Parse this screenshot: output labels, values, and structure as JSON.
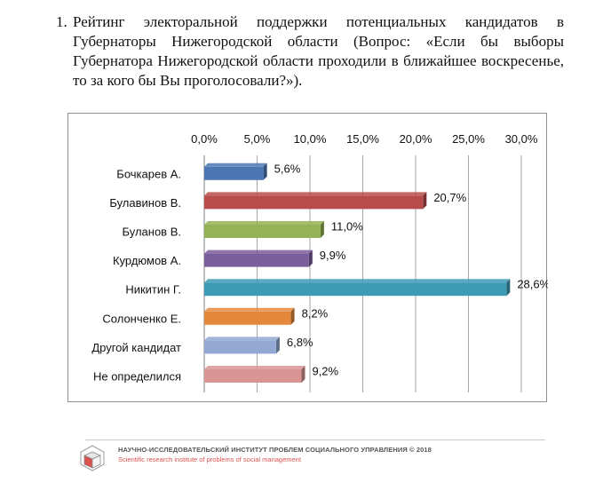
{
  "heading": {
    "number": "1.",
    "text": "Рейтинг электоральной поддержки потенциальных кандидатов в Губернаторы Нижегородской области (Вопрос: «Если бы выборы Губернатора Нижегородской области проходили в ближайшее воскресенье, то за кого бы Вы проголосовали?»)."
  },
  "chart_data": {
    "type": "bar",
    "orientation": "horizontal",
    "categories": [
      "Бочкарев А.",
      "Булавинов В.",
      "Буланов В.",
      "Курдюмов А.",
      "Никитин Г.",
      "Солонченко Е.",
      "Другой кандидат",
      "Не определился"
    ],
    "values": [
      5.6,
      20.7,
      11.0,
      9.9,
      28.6,
      8.2,
      6.8,
      9.2
    ],
    "value_labels": [
      "5,6%",
      "20,7%",
      "11,0%",
      "9,9%",
      "28,6%",
      "8,2%",
      "6,8%",
      "9,2%"
    ],
    "colors": [
      "#4a77b4",
      "#b84c4a",
      "#93b356",
      "#7a5d9b",
      "#3e9bb5",
      "#e4883c",
      "#93a9d4",
      "#d99594"
    ],
    "x_ticks": [
      0,
      5,
      10,
      15,
      20,
      25,
      30
    ],
    "x_tick_labels": [
      "0,0%",
      "5,0%",
      "10,0%",
      "15,0%",
      "20,0%",
      "25,0%",
      "30,0%"
    ],
    "xlim": [
      0,
      30
    ],
    "x_axis_position": "top",
    "grid": true,
    "title": "",
    "xlabel": "",
    "ylabel": ""
  },
  "footer": {
    "org_ru": "НАУЧНО-ИССЛЕДОВАТЕЛЬСКИЙ ИНСТИТУТ ПРОБЛЕМ СОЦИАЛЬНОГО УПРАВЛЕНИЯ  © 2018",
    "org_en": "Scientific research institute of problems of social management"
  }
}
